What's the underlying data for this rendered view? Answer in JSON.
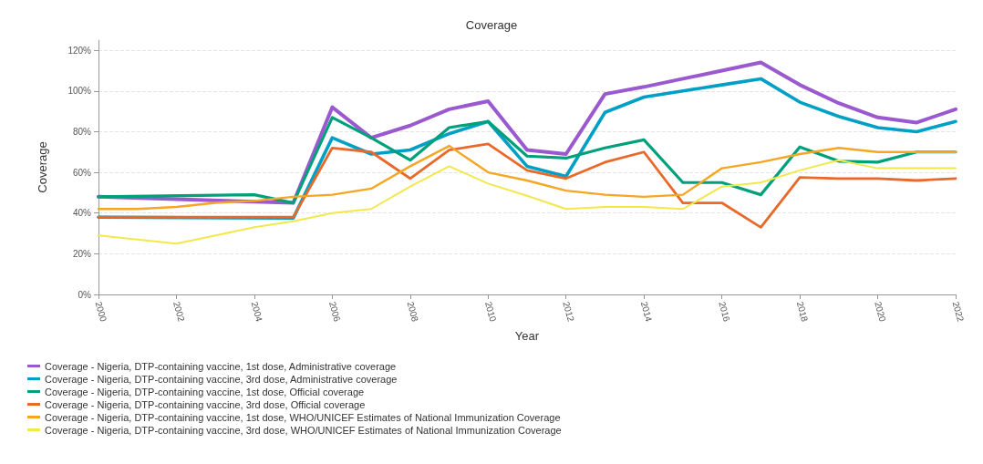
{
  "chart_data": {
    "type": "line",
    "title": "Coverage",
    "xlabel": "Year",
    "ylabel": "Coverage",
    "xlim": [
      2000,
      2022
    ],
    "xticks": [
      2000,
      2002,
      2004,
      2006,
      2008,
      2010,
      2012,
      2014,
      2016,
      2018,
      2020,
      2022
    ],
    "ylim": [
      0,
      125
    ],
    "yticks": [
      {
        "value": 0,
        "label": "0%"
      },
      {
        "value": 20,
        "label": "20%"
      },
      {
        "value": 40,
        "label": "40%"
      },
      {
        "value": 60,
        "label": "60%"
      },
      {
        "value": 80,
        "label": "80%"
      },
      {
        "value": 100,
        "label": "100%"
      },
      {
        "value": 120,
        "label": "120%"
      }
    ],
    "grid": "y",
    "legend": "bottom left",
    "marker": "none",
    "line_style": "solid",
    "series": [
      {
        "name": "Coverage - Nigeria, DTP-containing vaccine, 1st dose, Administrative coverage",
        "color": "#9b59d0",
        "x": [
          2000,
          2005,
          2006,
          2007,
          2008,
          2009,
          2010,
          2011,
          2012,
          2013,
          2014,
          2015,
          2016,
          2017,
          2018,
          2019,
          2020,
          2021,
          2022
        ],
        "values": [
          48,
          45,
          92,
          77,
          83,
          91,
          95,
          71,
          69,
          98.5,
          102,
          106,
          110,
          114,
          103,
          94,
          87,
          84.5,
          91
        ]
      },
      {
        "name": "Coverage - Nigeria, DTP-containing vaccine, 3rd dose, Administrative coverage",
        "color": "#00a0c6",
        "x": [
          2000,
          2005,
          2006,
          2007,
          2008,
          2009,
          2010,
          2011,
          2012,
          2013,
          2014,
          2015,
          2016,
          2017,
          2018,
          2019,
          2020,
          2021,
          2022
        ],
        "values": [
          38,
          37.5,
          77,
          69,
          71,
          79,
          85,
          63,
          58,
          89.5,
          97,
          100,
          103,
          106,
          94.5,
          87.5,
          82,
          80,
          85
        ]
      },
      {
        "name": "Coverage - Nigeria, DTP-containing vaccine, 1st dose, Official coverage",
        "color": "#00a07a",
        "x": [
          2000,
          2004,
          2005,
          2006,
          2007,
          2008,
          2009,
          2010,
          2011,
          2012,
          2013,
          2014,
          2015,
          2016,
          2017,
          2018,
          2019,
          2020,
          2021,
          2022
        ],
        "values": [
          48,
          49,
          45,
          87,
          77,
          66,
          82,
          85,
          68,
          67,
          72,
          76,
          55,
          55,
          49,
          72.5,
          65.5,
          65,
          70,
          70
        ]
      },
      {
        "name": "Coverage - Nigeria, DTP-containing vaccine, 3rd dose, Official coverage",
        "color": "#e8692a",
        "x": [
          2000,
          2005,
          2006,
          2007,
          2008,
          2009,
          2010,
          2011,
          2012,
          2013,
          2014,
          2015,
          2016,
          2017,
          2018,
          2019,
          2020,
          2021,
          2022
        ],
        "values": [
          38,
          38,
          72,
          70,
          57,
          71,
          74,
          61,
          57,
          65,
          70,
          45,
          45,
          33,
          57.5,
          57,
          57,
          56,
          57
        ]
      },
      {
        "name": "Coverage - Nigeria, DTP-containing vaccine, 1st dose, WHO/UNICEF Estimates of National Immunization Coverage",
        "color": "#f5a623",
        "x": [
          2000,
          2001,
          2002,
          2003,
          2004,
          2005,
          2006,
          2007,
          2008,
          2009,
          2010,
          2011,
          2012,
          2013,
          2014,
          2015,
          2016,
          2017,
          2018,
          2019,
          2020,
          2021,
          2022
        ],
        "values": [
          42,
          42,
          43,
          45,
          46,
          48,
          49,
          52,
          63,
          73,
          60,
          56,
          51,
          49,
          48,
          49,
          62,
          65,
          69,
          72,
          70,
          70,
          70
        ]
      },
      {
        "name": "Coverage - Nigeria, DTP-containing vaccine, 3rd dose, WHO/UNICEF Estimates of National Immunization Coverage",
        "color": "#f2e84b",
        "x": [
          2000,
          2002,
          2004,
          2005,
          2006,
          2007,
          2008,
          2009,
          2010,
          2011,
          2012,
          2013,
          2014,
          2015,
          2016,
          2017,
          2018,
          2019,
          2020,
          2021,
          2022
        ],
        "values": [
          29,
          25,
          33,
          36,
          40,
          42,
          53,
          63,
          54.5,
          48.5,
          42,
          43,
          43,
          42,
          53,
          55,
          61,
          66,
          62,
          62,
          62
        ]
      }
    ]
  }
}
